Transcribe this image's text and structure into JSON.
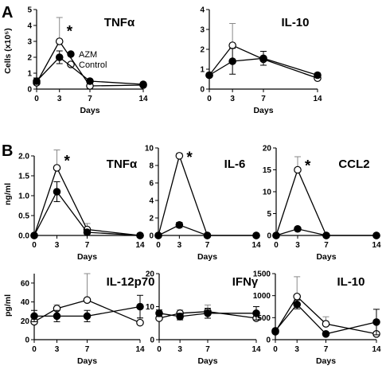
{
  "labels": {
    "panel_a": "A",
    "panel_b": "B"
  },
  "legend": {
    "azm": "AZM",
    "control": "Control"
  },
  "star": "*",
  "colors": {
    "azm_fill": "#000000",
    "control_fill": "#ffffff",
    "control_errbar": "#8a8a8a"
  },
  "chart_data": [
    {
      "type": "line",
      "title": "TNFα",
      "xlabel": "Days",
      "ylabel": "Cells (x10⁵)",
      "x": [
        0,
        3,
        7,
        14
      ],
      "xlim": [
        0,
        14
      ],
      "ylim": [
        0,
        5
      ],
      "x_ticks": [
        "0",
        "3",
        "7",
        "14"
      ],
      "y_ticks": [
        "0",
        "1",
        "2",
        "3",
        "4",
        "5"
      ],
      "series": [
        {
          "name": "AZM",
          "values": [
            0.5,
            2.0,
            0.5,
            0.3
          ],
          "err": [
            0.2,
            0.4,
            0.05,
            0.05
          ]
        },
        {
          "name": "Control",
          "values": [
            0.4,
            3.0,
            0.2,
            0.25
          ],
          "err": [
            0.1,
            1.5,
            0.05,
            0.05
          ]
        }
      ],
      "significant_at": [
        3
      ]
    },
    {
      "type": "line",
      "title": "IL-10",
      "xlabel": "Days",
      "ylabel": "",
      "x": [
        0,
        3,
        7,
        14
      ],
      "xlim": [
        0,
        14
      ],
      "ylim": [
        0,
        4
      ],
      "x_ticks": [
        "0",
        "3",
        "7",
        "14"
      ],
      "y_ticks": [
        "0",
        "1",
        "2",
        "3",
        "4"
      ],
      "series": [
        {
          "name": "AZM",
          "values": [
            0.7,
            1.4,
            1.55,
            0.7
          ],
          "err": [
            0.1,
            0.65,
            0.35,
            0.1
          ]
        },
        {
          "name": "Control",
          "values": [
            0.7,
            2.2,
            1.5,
            0.55
          ],
          "err": [
            0.1,
            1.1,
            0.1,
            0.05
          ]
        }
      ],
      "significant_at": []
    },
    {
      "type": "line",
      "title": "TNFα",
      "xlabel": "Days",
      "ylabel": "ng/ml",
      "x": [
        0,
        3,
        7,
        14
      ],
      "xlim": [
        0,
        14
      ],
      "ylim": [
        0,
        2.0
      ],
      "x_ticks": [
        "0",
        "3",
        "7",
        "14"
      ],
      "y_ticks": [
        "0.0",
        "0.5",
        "1.0",
        "1.5",
        "2.0"
      ],
      "series": [
        {
          "name": "AZM",
          "values": [
            0.0,
            1.1,
            0.08,
            0.0
          ],
          "err": [
            0.0,
            0.25,
            0.05,
            0.0
          ]
        },
        {
          "name": "Control",
          "values": [
            0.0,
            1.7,
            0.15,
            0.0
          ],
          "err": [
            0.0,
            0.45,
            0.15,
            0.0
          ]
        }
      ],
      "significant_at": [
        3
      ]
    },
    {
      "type": "line",
      "title": "IL-6",
      "xlabel": "Days",
      "ylabel": "",
      "x": [
        0,
        3,
        7,
        14
      ],
      "xlim": [
        0,
        14
      ],
      "ylim": [
        0,
        10
      ],
      "x_ticks": [
        "0",
        "3",
        "7",
        "14"
      ],
      "y_ticks": [
        "0",
        "2",
        "4",
        "6",
        "8",
        "10"
      ],
      "series": [
        {
          "name": "AZM",
          "values": [
            0,
            1.2,
            0,
            0
          ],
          "err": [
            0,
            0.3,
            0,
            0
          ]
        },
        {
          "name": "Control",
          "values": [
            0,
            9.1,
            0,
            0
          ],
          "err": [
            0,
            0.3,
            0,
            0
          ]
        }
      ],
      "significant_at": [
        3
      ]
    },
    {
      "type": "line",
      "title": "CCL2",
      "xlabel": "Days",
      "ylabel": "",
      "x": [
        0,
        3,
        7,
        14
      ],
      "xlim": [
        0,
        14
      ],
      "ylim": [
        0,
        20
      ],
      "x_ticks": [
        "0",
        "3",
        "7",
        "14"
      ],
      "y_ticks": [
        "0",
        "5",
        "10",
        "15",
        "20"
      ],
      "series": [
        {
          "name": "AZM",
          "values": [
            0,
            1.5,
            0,
            0
          ],
          "err": [
            0,
            0.3,
            0,
            0
          ]
        },
        {
          "name": "Control",
          "values": [
            0,
            15,
            0,
            0
          ],
          "err": [
            0,
            3.0,
            0,
            0
          ]
        }
      ],
      "significant_at": [
        3
      ]
    },
    {
      "type": "line",
      "title": "IL-12p70",
      "xlabel": "Days",
      "ylabel": "pg/ml",
      "x": [
        0,
        3,
        7,
        14
      ],
      "xlim": [
        0,
        14
      ],
      "ylim": [
        0,
        70
      ],
      "x_ticks": [
        "0",
        "3",
        "7",
        "14"
      ],
      "y_ticks": [
        "0",
        "20",
        "40",
        "60"
      ],
      "series": [
        {
          "name": "AZM",
          "values": [
            25,
            25,
            25,
            35
          ],
          "err": [
            6,
            6,
            6,
            12
          ]
        },
        {
          "name": "Control",
          "values": [
            19,
            33,
            42,
            18
          ],
          "err": [
            4,
            4,
            28,
            5
          ]
        }
      ],
      "significant_at": []
    },
    {
      "type": "line",
      "title": "IFNγ",
      "xlabel": "Days",
      "ylabel": "",
      "x": [
        0,
        3,
        7,
        14
      ],
      "xlim": [
        0,
        14
      ],
      "ylim": [
        0,
        20
      ],
      "x_ticks": [
        "0",
        "3",
        "7",
        "14"
      ],
      "y_ticks": [
        "0",
        "10",
        "20"
      ],
      "series": [
        {
          "name": "AZM",
          "values": [
            8,
            7,
            8,
            8
          ],
          "err": [
            1,
            1,
            1.5,
            2
          ]
        },
        {
          "name": "Control",
          "values": [
            6.5,
            8,
            8.5,
            6.5
          ],
          "err": [
            1.5,
            1,
            2,
            1
          ]
        }
      ],
      "significant_at": []
    },
    {
      "type": "line",
      "title": "IL-10",
      "xlabel": "Days",
      "ylabel": "",
      "x": [
        0,
        3,
        7,
        14
      ],
      "xlim": [
        0,
        14
      ],
      "ylim": [
        0,
        1500
      ],
      "x_ticks": [
        "0",
        "3",
        "7",
        "14"
      ],
      "y_ticks": [
        "0",
        "500",
        "1000",
        "1500"
      ],
      "series": [
        {
          "name": "AZM",
          "values": [
            200,
            800,
            130,
            400
          ],
          "err": [
            30,
            100,
            40,
            290
          ]
        },
        {
          "name": "Control",
          "values": [
            180,
            980,
            360,
            130
          ],
          "err": [
            30,
            450,
            160,
            40
          ]
        }
      ],
      "significant_at": []
    }
  ]
}
